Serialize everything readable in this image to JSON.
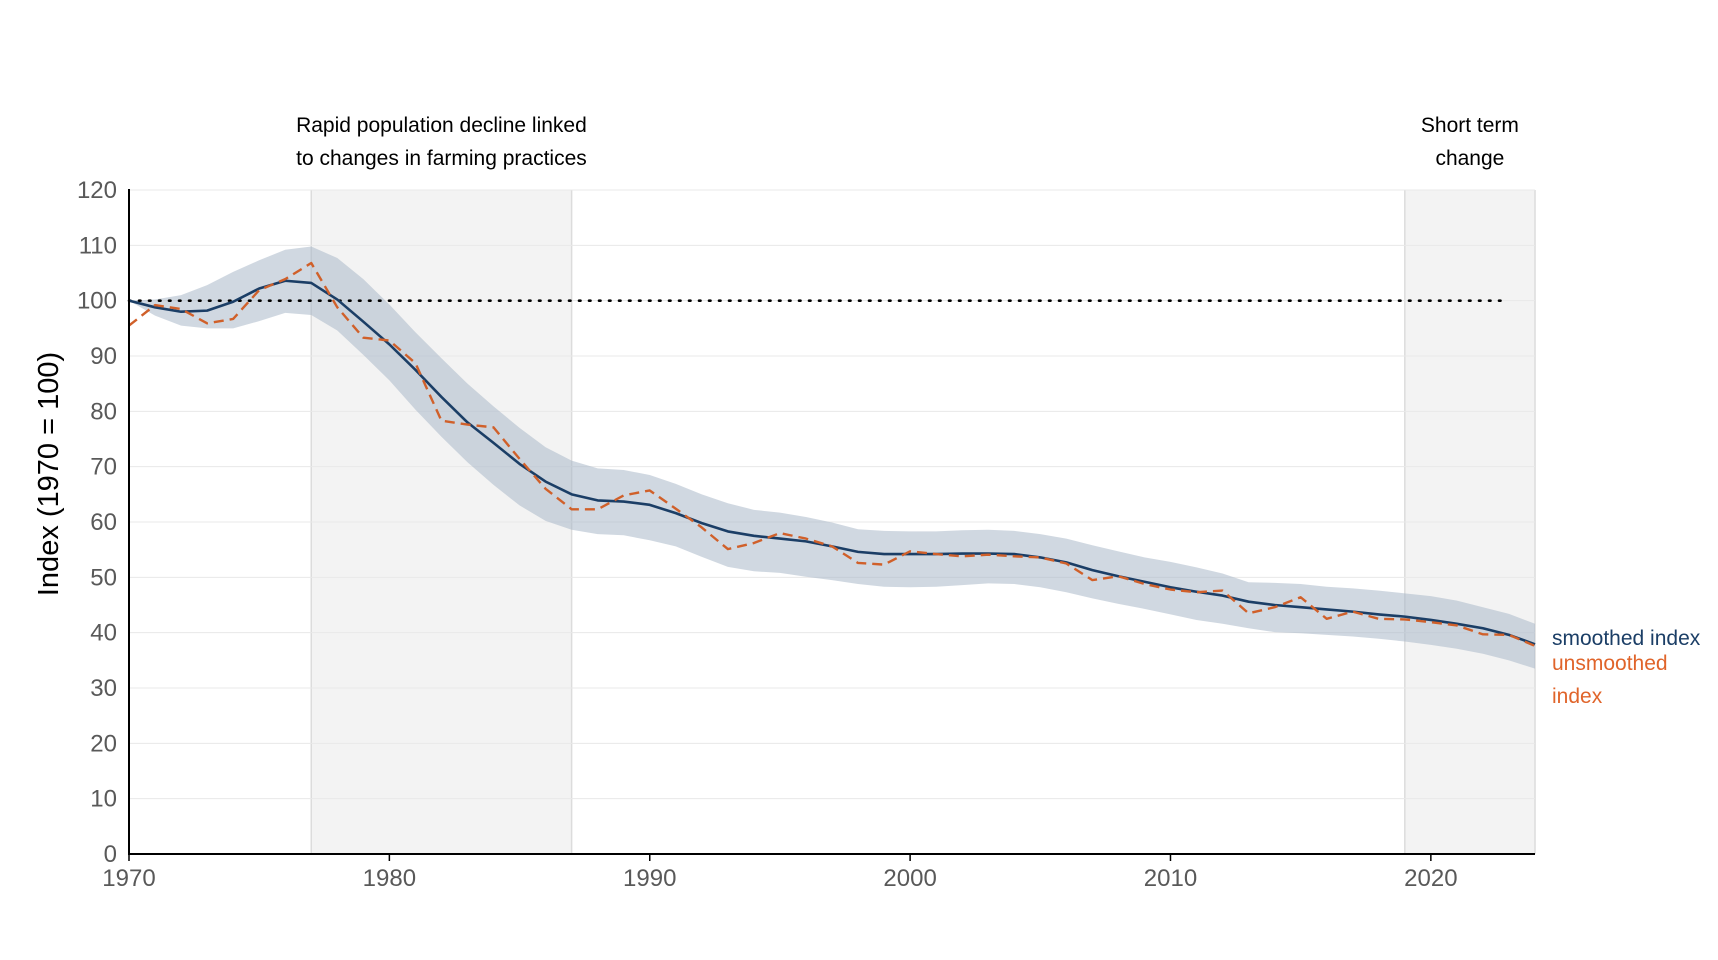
{
  "chart_data": {
    "type": "line",
    "xlabel": "",
    "ylabel": "Index (1970 = 100)",
    "xlim": [
      1970,
      2024
    ],
    "ylim": [
      0,
      120
    ],
    "xticks": [
      "1970",
      "1980",
      "1990",
      "2000",
      "2010",
      "2020"
    ],
    "yticks": [
      "0",
      "10",
      "20",
      "30",
      "40",
      "50",
      "60",
      "70",
      "80",
      "90",
      "100",
      "110",
      "120"
    ],
    "reference_line": {
      "y": 100,
      "style": "dotted",
      "color": "#000000"
    },
    "shaded_periods": [
      {
        "from": 1977,
        "to": 1987,
        "label_lines": [
          "Rapid population decline linked",
          "to changes in farming practices"
        ]
      },
      {
        "from": 2019,
        "to": 2024,
        "label_lines": [
          "Short term",
          "change"
        ]
      }
    ],
    "x": [
      1970,
      1971,
      1972,
      1973,
      1974,
      1975,
      1976,
      1977,
      1978,
      1979,
      1980,
      1981,
      1982,
      1983,
      1984,
      1985,
      1986,
      1987,
      1988,
      1989,
      1990,
      1991,
      1992,
      1993,
      1994,
      1995,
      1996,
      1997,
      1998,
      1999,
      2000,
      2001,
      2002,
      2003,
      2004,
      2005,
      2006,
      2007,
      2008,
      2009,
      2010,
      2011,
      2012,
      2013,
      2014,
      2015,
      2016,
      2017,
      2018,
      2019,
      2020,
      2021,
      2022,
      2023,
      2024
    ],
    "series": [
      {
        "name": "smoothed index",
        "color": "#1b3e66",
        "style": "solid",
        "values": [
          100,
          98.8,
          98.0,
          98.2,
          99.8,
          102.2,
          103.6,
          103.2,
          100.2,
          96.2,
          92.1,
          87.5,
          82.6,
          78.0,
          74.3,
          70.5,
          67.3,
          65.0,
          63.9,
          63.7,
          63.1,
          61.6,
          59.8,
          58.3,
          57.5,
          57.0,
          56.5,
          55.6,
          54.6,
          54.2,
          54.2,
          54.2,
          54.3,
          54.3,
          54.2,
          53.6,
          52.7,
          51.3,
          50.2,
          49.2,
          48.2,
          47.4,
          46.7,
          45.6,
          45.0,
          44.6,
          44.2,
          43.8,
          43.3,
          42.9,
          42.3,
          41.6,
          40.8,
          39.6,
          37.9
        ],
        "lower": [
          100,
          97.3,
          95.5,
          95.0,
          95.0,
          96.3,
          97.8,
          97.4,
          94.6,
          90.2,
          85.6,
          80.3,
          75.4,
          70.8,
          66.7,
          63.0,
          60.2,
          58.6,
          57.8,
          57.6,
          56.7,
          55.6,
          53.7,
          51.9,
          51.1,
          50.8,
          50.1,
          49.5,
          48.8,
          48.3,
          48.2,
          48.3,
          48.6,
          48.9,
          48.8,
          48.2,
          47.3,
          46.2,
          45.2,
          44.3,
          43.3,
          42.3,
          41.6,
          40.8,
          40.1,
          39.9,
          39.6,
          39.3,
          38.9,
          38.4,
          37.8,
          37.1,
          36.2,
          35.0,
          33.5
        ],
        "upper": [
          100,
          100.2,
          101.0,
          102.8,
          105.2,
          107.3,
          109.2,
          109.8,
          107.7,
          103.9,
          99.3,
          94.3,
          89.6,
          85.0,
          80.9,
          77.0,
          73.5,
          71.1,
          69.7,
          69.4,
          68.5,
          66.9,
          65.0,
          63.4,
          62.2,
          61.7,
          60.9,
          59.9,
          58.7,
          58.4,
          58.3,
          58.3,
          58.5,
          58.6,
          58.4,
          57.8,
          57.0,
          55.8,
          54.7,
          53.6,
          52.8,
          51.8,
          50.7,
          49.1,
          49.0,
          48.8,
          48.3,
          48.0,
          47.6,
          47.1,
          46.6,
          45.8,
          44.6,
          43.4,
          41.6
        ]
      },
      {
        "name": "unsmoothed index",
        "color": "#d0602a",
        "style": "dashed",
        "values": [
          95.5,
          99.2,
          98.5,
          95.9,
          96.7,
          101.9,
          103.9,
          106.8,
          98.8,
          93.3,
          92.8,
          88.7,
          78.3,
          77.6,
          77.1,
          71.4,
          66.0,
          62.3,
          62.3,
          64.8,
          65.7,
          62.4,
          59.0,
          55.1,
          56.2,
          58.0,
          57.0,
          55.6,
          52.6,
          52.3,
          54.7,
          54.2,
          53.8,
          54.1,
          53.8,
          53.6,
          52.5,
          49.5,
          50.2,
          48.8,
          47.8,
          47.3,
          47.6,
          43.5,
          44.6,
          46.4,
          42.5,
          43.8,
          42.5,
          42.4,
          41.9,
          41.3,
          39.7,
          39.6,
          37.6
        ]
      }
    ],
    "legend_placement": "right-end-of-lines",
    "legend": [
      {
        "lines": [
          "smoothed index"
        ],
        "color": "#1b3e66"
      },
      {
        "lines": [
          "unsmoothed",
          "index"
        ],
        "color": "#e0642a"
      }
    ]
  }
}
